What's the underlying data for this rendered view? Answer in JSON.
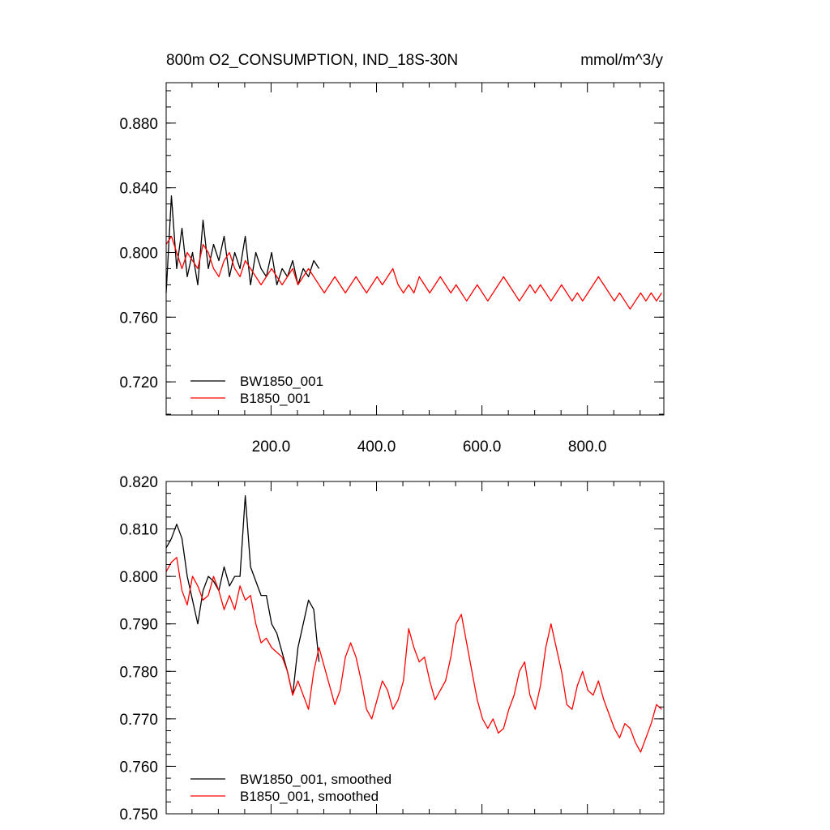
{
  "chart_data": [
    {
      "type": "line",
      "title": "800m O2_CONSUMPTION, IND_18S-30N",
      "units": "mmol/m^3/y",
      "xlim": [
        1,
        945
      ],
      "ylim": [
        0.6995,
        0.905
      ],
      "x_ticks": [
        200,
        400,
        600,
        800
      ],
      "x_tick_labels": [
        "200.0",
        "400.0",
        "600.0",
        "800.0"
      ],
      "y_ticks": [
        0.72,
        0.76,
        0.8,
        0.84,
        0.88
      ],
      "y_tick_labels": [
        "0.720",
        "0.760",
        "0.800",
        "0.840",
        "0.880"
      ],
      "legend_position": "bottom-left",
      "series": [
        {
          "name": "BW1850_001",
          "color": "#000000",
          "x_start": 1,
          "x_step": 10,
          "values": [
            0.775,
            0.835,
            0.79,
            0.815,
            0.785,
            0.8,
            0.78,
            0.82,
            0.79,
            0.805,
            0.795,
            0.81,
            0.785,
            0.8,
            0.79,
            0.81,
            0.78,
            0.8,
            0.79,
            0.785,
            0.8,
            0.78,
            0.79,
            0.785,
            0.795,
            0.78,
            0.79,
            0.785,
            0.795,
            0.79
          ]
        },
        {
          "name": "B1850_001",
          "color": "#ff0000",
          "x_start": 1,
          "x_step": 10,
          "values": [
            0.805,
            0.81,
            0.8,
            0.79,
            0.8,
            0.795,
            0.79,
            0.805,
            0.8,
            0.79,
            0.785,
            0.795,
            0.8,
            0.79,
            0.785,
            0.795,
            0.79,
            0.785,
            0.78,
            0.785,
            0.79,
            0.785,
            0.78,
            0.785,
            0.79,
            0.78,
            0.785,
            0.79,
            0.785,
            0.78,
            0.775,
            0.78,
            0.785,
            0.78,
            0.775,
            0.78,
            0.785,
            0.78,
            0.775,
            0.78,
            0.785,
            0.78,
            0.785,
            0.79,
            0.78,
            0.775,
            0.78,
            0.775,
            0.785,
            0.78,
            0.775,
            0.78,
            0.785,
            0.78,
            0.775,
            0.78,
            0.775,
            0.77,
            0.775,
            0.78,
            0.775,
            0.77,
            0.775,
            0.78,
            0.785,
            0.78,
            0.775,
            0.77,
            0.775,
            0.78,
            0.775,
            0.78,
            0.775,
            0.77,
            0.775,
            0.78,
            0.775,
            0.77,
            0.775,
            0.77,
            0.775,
            0.78,
            0.785,
            0.78,
            0.775,
            0.77,
            0.775,
            0.77,
            0.765,
            0.77,
            0.775,
            0.77,
            0.775,
            0.77,
            0.775
          ]
        }
      ]
    },
    {
      "type": "line",
      "xlim": [
        1,
        945
      ],
      "ylim": [
        0.75,
        0.82
      ],
      "y_ticks": [
        0.75,
        0.76,
        0.77,
        0.78,
        0.79,
        0.8,
        0.81,
        0.82
      ],
      "y_tick_labels": [
        "0.750",
        "0.760",
        "0.770",
        "0.780",
        "0.790",
        "0.800",
        "0.810",
        "0.820"
      ],
      "legend_position": "bottom-left",
      "series": [
        {
          "name": "BW1850_001, smoothed",
          "color": "#000000",
          "x_start": 1,
          "x_step": 10,
          "values": [
            0.806,
            0.808,
            0.811,
            0.808,
            0.8,
            0.795,
            0.79,
            0.797,
            0.8,
            0.799,
            0.797,
            0.802,
            0.798,
            0.8,
            0.8,
            0.817,
            0.802,
            0.799,
            0.796,
            0.796,
            0.79,
            0.788,
            0.784,
            0.78,
            0.775,
            0.785,
            0.79,
            0.795,
            0.793,
            0.782
          ]
        },
        {
          "name": "B1850_001, smoothed",
          "color": "#ff0000",
          "x_start": 1,
          "x_step": 10,
          "values": [
            0.801,
            0.803,
            0.804,
            0.797,
            0.794,
            0.8,
            0.798,
            0.795,
            0.796,
            0.8,
            0.797,
            0.793,
            0.796,
            0.793,
            0.798,
            0.795,
            0.796,
            0.79,
            0.786,
            0.787,
            0.785,
            0.784,
            0.783,
            0.78,
            0.775,
            0.778,
            0.775,
            0.772,
            0.78,
            0.785,
            0.781,
            0.777,
            0.773,
            0.776,
            0.783,
            0.786,
            0.783,
            0.778,
            0.772,
            0.77,
            0.774,
            0.778,
            0.776,
            0.772,
            0.774,
            0.778,
            0.789,
            0.785,
            0.782,
            0.783,
            0.778,
            0.774,
            0.776,
            0.778,
            0.783,
            0.79,
            0.792,
            0.786,
            0.78,
            0.774,
            0.77,
            0.768,
            0.77,
            0.767,
            0.768,
            0.772,
            0.775,
            0.78,
            0.782,
            0.775,
            0.772,
            0.777,
            0.785,
            0.79,
            0.785,
            0.78,
            0.773,
            0.772,
            0.777,
            0.78,
            0.776,
            0.775,
            0.778,
            0.774,
            0.771,
            0.768,
            0.766,
            0.769,
            0.768,
            0.765,
            0.763,
            0.766,
            0.769,
            0.773,
            0.772
          ]
        }
      ]
    }
  ]
}
